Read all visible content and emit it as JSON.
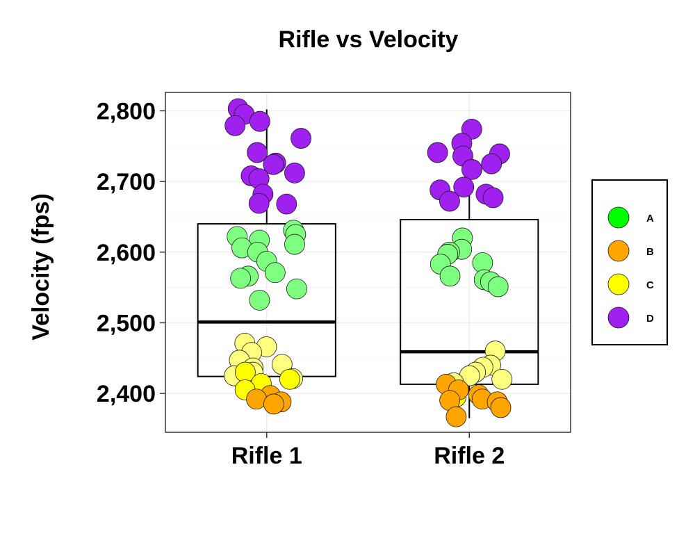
{
  "chart_data": {
    "type": "boxplot-jitter",
    "title": "Rifle vs Velocity",
    "ylabel": "Velocity (fps)",
    "xlabel": "",
    "categories": [
      "Rifle 1",
      "Rifle 2"
    ],
    "ylim": [
      2345,
      2826
    ],
    "yticks": [
      2400,
      2500,
      2600,
      2700,
      2800
    ],
    "ytick_labels": [
      "2,400",
      "2,500",
      "2,600",
      "2,700",
      "2,800"
    ],
    "grid": true,
    "legend_position": "right",
    "legend": [
      {
        "label": "A",
        "color": "#00ff00"
      },
      {
        "label": "B",
        "color": "#ffa500"
      },
      {
        "label": "C",
        "color": "#ffff00"
      },
      {
        "label": "D",
        "color": "#a020f0"
      }
    ],
    "boxes": [
      {
        "category": "Rifle 1",
        "q1": 2424,
        "median": 2501,
        "q3": 2640,
        "whisker_low": 2385,
        "whisker_high": 2802
      },
      {
        "category": "Rifle 2",
        "q1": 2413,
        "median": 2459,
        "q3": 2646,
        "whisker_low": 2365,
        "whisker_high": 2773
      }
    ],
    "series": [
      {
        "category": "Rifle 1",
        "color": "#7fff7f",
        "values": [
          2631,
          2625,
          2622,
          2617,
          2611,
          2606,
          2600,
          2587,
          2571,
          2566,
          2563,
          2548,
          2532
        ]
      },
      {
        "category": "Rifle 1",
        "color": "#ffff7f",
        "values": [
          2471,
          2466,
          2458,
          2447,
          2441,
          2436,
          2430,
          2425,
          2421
        ]
      },
      {
        "category": "Rifle 1",
        "color": "#ffff00",
        "values": [
          2430,
          2420,
          2414,
          2405
        ]
      },
      {
        "category": "Rifle 1",
        "color": "#ffa500",
        "values": [
          2397,
          2392,
          2388,
          2385
        ]
      },
      {
        "category": "Rifle 1",
        "color": "#a020f0",
        "values": [
          2803,
          2795,
          2785,
          2779,
          2761,
          2741,
          2726,
          2724,
          2712,
          2708,
          2704,
          2682,
          2669,
          2668
        ]
      },
      {
        "category": "Rifle 2",
        "color": "#7fff7f",
        "values": [
          2620,
          2604,
          2600,
          2597,
          2585,
          2583,
          2566,
          2561,
          2558,
          2551
        ]
      },
      {
        "category": "Rifle 2",
        "color": "#ffff7f",
        "values": [
          2460,
          2440,
          2437,
          2430,
          2425,
          2420,
          2415
        ]
      },
      {
        "category": "Rifle 2",
        "color": "#ffff00",
        "values": [
          2395
        ]
      },
      {
        "category": "Rifle 2",
        "color": "#ffa500",
        "values": [
          2413,
          2405,
          2398,
          2392,
          2390,
          2388,
          2380,
          2367
        ]
      },
      {
        "category": "Rifle 2",
        "color": "#a020f0",
        "values": [
          2774,
          2754,
          2741,
          2739,
          2736,
          2725,
          2717,
          2692,
          2688,
          2682,
          2677,
          2672
        ]
      }
    ]
  }
}
